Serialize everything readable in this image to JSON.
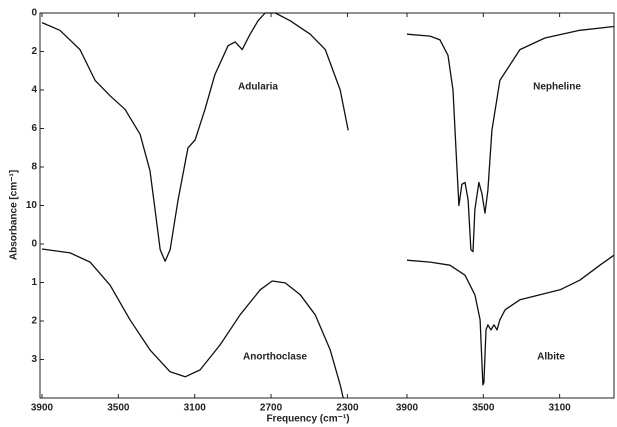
{
  "chart_data": [
    {
      "type": "line",
      "xlabel": "Frequency  (cm⁻¹)",
      "ylabel": "Absorbance  [cm⁻¹]",
      "xlim": [
        3900,
        2145
      ],
      "xticks": [
        3900,
        3500,
        3100,
        2700,
        2300
      ],
      "ylim": [
        0,
        20
      ],
      "yticks": [
        0,
        2,
        4,
        6,
        8,
        10
      ],
      "y2lim": [
        -6,
        4
      ],
      "y2ticks": [
        0,
        1,
        2,
        3
      ],
      "series": [
        {
          "name": "Adularia",
          "color": "#111111",
          "x": [
            3900,
            3806,
            3701,
            3622,
            3543,
            3465,
            3386,
            3334,
            3308,
            3281,
            3255,
            3229,
            3187,
            3135,
            3098,
            3046,
            2994,
            2925,
            2888,
            2851,
            2810,
            2768,
            2731,
            2678,
            2600,
            2495,
            2416,
            2338,
            2296
          ],
          "values": [
            0.5,
            0.9,
            1.9,
            3.5,
            4.3,
            5.0,
            6.3,
            8.2,
            10.2,
            12.3,
            12.9,
            12.3,
            9.7,
            7.0,
            6.6,
            5.0,
            3.2,
            1.7,
            1.5,
            1.9,
            1.1,
            0.4,
            0.0,
            0.0,
            0.4,
            1.1,
            1.9,
            4.0,
            6.1
          ]
        },
        {
          "name": "Anorthoclase",
          "color": "#111111",
          "axis": "y2",
          "x": [
            3900,
            3753,
            3648,
            3543,
            3439,
            3334,
            3229,
            3150,
            3072,
            2967,
            2862,
            2757,
            2694,
            2626,
            2547,
            2469,
            2390,
            2338,
            2322
          ],
          "values": [
            0.13,
            0.23,
            0.47,
            1.07,
            1.97,
            2.75,
            3.32,
            3.45,
            3.27,
            2.62,
            1.84,
            1.19,
            0.96,
            1.01,
            1.32,
            1.84,
            2.75,
            3.66,
            4.0
          ]
        }
      ]
    },
    {
      "type": "line",
      "xlim": [
        3900,
        2815
      ],
      "xticks": [
        3900,
        3500,
        3100
      ],
      "ylim": [
        0,
        20
      ],
      "y2lim": [
        -6,
        4
      ],
      "series": [
        {
          "name": "Nepheline",
          "color": "#111111",
          "x": [
            3900,
            3779,
            3727,
            3685,
            3659,
            3643,
            3628,
            3612,
            3596,
            3580,
            3565,
            3554,
            3544,
            3523,
            3507,
            3491,
            3476,
            3455,
            3413,
            3308,
            3177,
            2994,
            2815
          ],
          "values": [
            1.1,
            1.2,
            1.4,
            2.2,
            4.0,
            7.1,
            10.0,
            8.9,
            8.8,
            9.7,
            12.3,
            12.4,
            10.2,
            8.8,
            9.4,
            10.4,
            9.2,
            6.1,
            3.5,
            1.9,
            1.3,
            0.9,
            0.7
          ]
        },
        {
          "name": "Albite",
          "color": "#111111",
          "axis": "y2",
          "x": [
            3900,
            3779,
            3675,
            3596,
            3544,
            3517,
            3502,
            3497,
            3486,
            3476,
            3460,
            3444,
            3428,
            3413,
            3386,
            3308,
            3203,
            3098,
            2994,
            2889,
            2815
          ],
          "values": [
            0.42,
            0.47,
            0.55,
            0.81,
            1.32,
            1.97,
            3.66,
            3.6,
            2.23,
            2.1,
            2.23,
            2.1,
            2.23,
            1.97,
            1.71,
            1.45,
            1.32,
            1.19,
            0.94,
            0.55,
            0.29
          ]
        }
      ]
    }
  ]
}
